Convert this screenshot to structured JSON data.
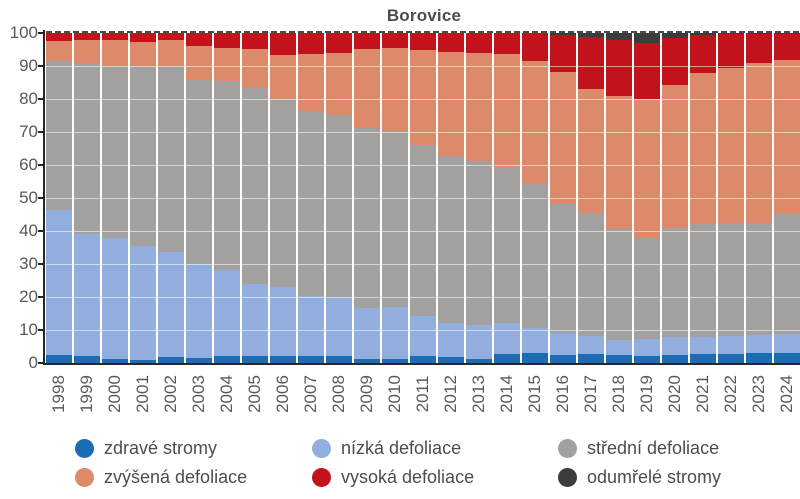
{
  "title": "Borovice",
  "chart_data": {
    "type": "bar",
    "subtype": "stacked-percent",
    "title": "Borovice",
    "x": [
      "1998",
      "1999",
      "2000",
      "2001",
      "2002",
      "2003",
      "2004",
      "2005",
      "2006",
      "2007",
      "2008",
      "2009",
      "2010",
      "2011",
      "2012",
      "2013",
      "2014",
      "2015",
      "2016",
      "2017",
      "2018",
      "2019",
      "2020",
      "2021",
      "2022",
      "2023",
      "2024"
    ],
    "series": [
      {
        "name": "zdravé stromy",
        "color": "#1a6cb5",
        "values": [
          2.5,
          2.0,
          1.2,
          1.0,
          1.8,
          1.6,
          2.2,
          2.2,
          2.1,
          2.1,
          2.1,
          1.2,
          1.2,
          2.0,
          1.9,
          1.1,
          2.7,
          2.9,
          2.4,
          2.7,
          2.4,
          2.1,
          2.4,
          2.7,
          2.7,
          2.9,
          2.9
        ]
      },
      {
        "name": "nízká defoliace",
        "color": "#92aede",
        "values": [
          44.0,
          37.0,
          36.8,
          34.5,
          31.7,
          28.4,
          26.0,
          21.7,
          20.8,
          18.2,
          17.8,
          15.4,
          15.9,
          12.2,
          10.3,
          10.4,
          9.5,
          7.8,
          6.8,
          5.5,
          4.6,
          5.1,
          5.4,
          5.3,
          5.5,
          5.6,
          5.8
        ]
      },
      {
        "name": "střední defoliace",
        "color": "#a3a0a0",
        "values": [
          45.0,
          51.8,
          52.1,
          54.6,
          56.0,
          55.7,
          57.3,
          59.5,
          57.1,
          56.2,
          55.4,
          54.6,
          53.1,
          52.0,
          50.5,
          49.6,
          47.1,
          43.8,
          39.0,
          37.3,
          33.5,
          30.8,
          33.2,
          34.2,
          34.1,
          33.8,
          36.6
        ]
      },
      {
        "name": "zvýšená defoliace",
        "color": "#dd8a6b",
        "values": [
          6.1,
          7.2,
          7.9,
          7.3,
          8.3,
          10.5,
          10.1,
          11.8,
          13.3,
          17.0,
          18.8,
          24.0,
          25.2,
          28.6,
          31.6,
          32.9,
          34.4,
          37.0,
          40.1,
          37.5,
          40.5,
          42.0,
          43.2,
          45.6,
          47.2,
          48.5,
          46.5
        ]
      },
      {
        "name": "vysoká defoliace",
        "color": "#c2131c",
        "values": [
          2.4,
          2.0,
          2.0,
          2.6,
          2.2,
          3.8,
          4.4,
          4.8,
          6.7,
          6.5,
          5.9,
          4.8,
          4.6,
          5.2,
          5.7,
          6.0,
          6.3,
          8.5,
          11.2,
          15.7,
          17.0,
          17.0,
          14.3,
          11.7,
          10.3,
          9.0,
          8.0
        ]
      },
      {
        "name": "odumřelé stromy",
        "color": "#3c3c3b",
        "values": [
          0,
          0,
          0,
          0,
          0,
          0,
          0,
          0,
          0,
          0,
          0,
          0,
          0,
          0,
          0,
          0,
          0,
          0,
          0.5,
          1.3,
          2.0,
          3.0,
          1.5,
          0.5,
          0.2,
          0.2,
          0.2
        ]
      }
    ],
    "ylim": [
      0,
      100
    ],
    "yticks": [
      0,
      10,
      20,
      30,
      40,
      50,
      60,
      70,
      80,
      90,
      100
    ],
    "xlabel": "",
    "ylabel": "",
    "grid": true,
    "legend_position": "bottom"
  }
}
